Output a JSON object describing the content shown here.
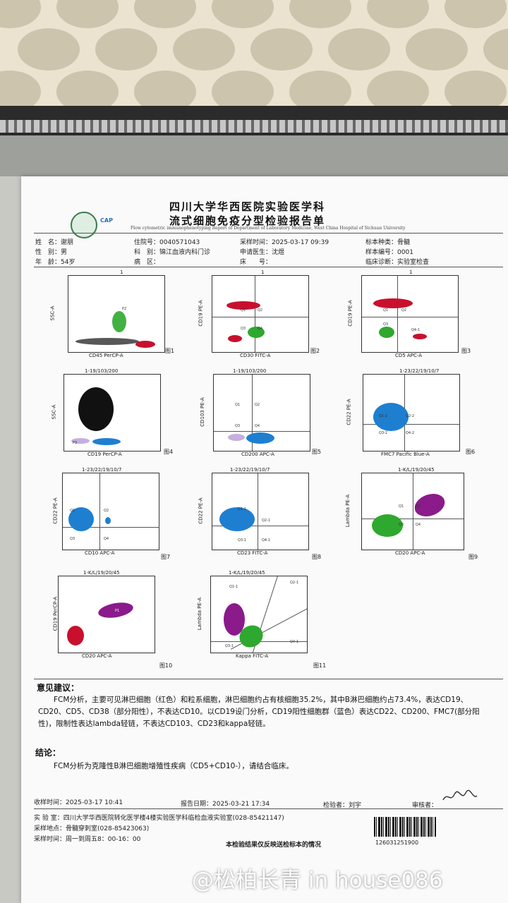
{
  "header": {
    "title_1": "四川大学华西医院实验医学科",
    "title_2": "流式细胞免疫分型检验报告单",
    "english": "Flow cytometric immunophenotyping Report of Department of Laboratory Medicine, West China Hospital of Sichuan University",
    "cap_logo": "CAP"
  },
  "patient": {
    "name_label": "姓　名：",
    "name": "谢朋",
    "gender_label": "性　别：",
    "gender": "男",
    "age_label": "年　龄：",
    "age": "54岁",
    "inpatient_label": "住院号：",
    "inpatient": "0040571043",
    "dept_label": "科　别：",
    "dept": "锦江血液内科门诊",
    "ward_label": "病　区：",
    "ward": "",
    "collect_label": "采样时间：",
    "collect": "2025-03-17 09:39",
    "doctor_label": "申请医生：",
    "doctor": "沈煜",
    "bed_label": "床　　号：",
    "bed": "",
    "type_label": "标本种类：",
    "type": "骨髓",
    "no_label": "样本编号：",
    "no": "0001",
    "diag_label": "临床诊断：",
    "diag": "实验室检查"
  },
  "plots": [
    {
      "title": "1",
      "x": "CD45 PerCP-A",
      "y": "SSC-A",
      "fig": "图1",
      "gates": [
        "P2"
      ]
    },
    {
      "title": "1",
      "x": "CD30 FITC-A",
      "y": "CD19 PE-A",
      "fig": "图2",
      "gates": [
        "Q1",
        "Q2",
        "Q3",
        "Q4"
      ]
    },
    {
      "title": "1",
      "x": "CD5 APC-A",
      "y": "CD19 PE-A",
      "fig": "图3",
      "gates": [
        "Q1",
        "Q2",
        "Q3",
        "Q4-1"
      ]
    },
    {
      "title": "1-19/103/200",
      "x": "CD19 PerCP-A",
      "y": "SSC-A",
      "fig": "图4",
      "gates": [
        "P3"
      ]
    },
    {
      "title": "1-19/103/200",
      "x": "CD200 APC-A",
      "y": "CD103 PE-A",
      "fig": "图5",
      "gates": [
        "Q1",
        "Q2",
        "Q3",
        "Q4"
      ]
    },
    {
      "title": "1-23/22/19/10/7",
      "x": "FMC7 Pacific Blue-A",
      "y": "CD22 PE-A",
      "fig": "图6",
      "gates": [
        "Q1-2",
        "Q2-2",
        "Q3-2",
        "Q4-2"
      ]
    },
    {
      "title": "1-23/22/19/10/7",
      "x": "CD10 APC-A",
      "y": "CD22 PE-A",
      "fig": "图7",
      "gates": [
        "Q1",
        "Q2",
        "Q3",
        "Q4"
      ]
    },
    {
      "title": "1-23/22/19/10/7",
      "x": "CD23 FITC-A",
      "y": "CD22 PE-A",
      "fig": "图8",
      "gates": [
        "Q1-1",
        "Q2-1",
        "Q3-1",
        "Q4-1"
      ]
    },
    {
      "title": "1-K/L/19/20/45",
      "x": "CD20 APC-A",
      "y": "Lambda PE-A",
      "fig": "图9",
      "gates": [
        "Q1",
        "Q2",
        "Q3",
        "Q4"
      ]
    },
    {
      "title": "1-K/L/19/20/45",
      "x": "CD20 APC-A",
      "y": "CD19 PerCP-A",
      "fig": "图10",
      "gates": [
        "P1"
      ]
    },
    {
      "title": "1-K/L/19/20/45",
      "x": "Kappa FITC-A",
      "y": "Lambda PE-A",
      "fig": "图11",
      "gates": [
        "Q1-1",
        "Q2-1",
        "Q3-1",
        "Q4-1"
      ]
    }
  ],
  "opinion": {
    "label": "意见建议：",
    "text": "FCM分析，主要可见淋巴细胞（红色）和粒系细胞，淋巴细胞约占有核细胞35.2%，其中B淋巴细胞约占73.4%，表达CD19、CD20、CD5、CD38（部分阳性），不表达CD10。以CD19设门分析，CD19阳性细胞群（蓝色）表达CD22、CD200、FMC7(部分阳性)，限制性表达lambda轻链，不表达CD103、CD23和kappa轻链。"
  },
  "conclusion": {
    "label": "结论：",
    "text": "FCM分析为克隆性B淋巴细胞增殖性疾病（CD5+CD10-），请结合临床。"
  },
  "footer": {
    "receive": "收样时间：2025-03-17  10:41",
    "report": "报告日期：2025-03-21 17:34",
    "tester": "检验者：刘宇",
    "reviewer": "审核者：",
    "lab": "实 验 室：四川大学华西医院转化医学楼4楼实验医学科临检血液实验室(028-85421147)",
    "place": "采样地点：骨髓穿刺室(028-85423063)",
    "time": "采样时间：周一到周五8：00-16：00",
    "note": "本检验结果仅反映送检标本的情况",
    "barcode": "12603125190​0"
  },
  "watermark": "@松柏长青 in house086",
  "colors": {
    "red": "#c8102e",
    "green": "#2ea82e",
    "blue": "#1e7fd0",
    "purple": "#8b1a8b",
    "black": "#111111"
  }
}
